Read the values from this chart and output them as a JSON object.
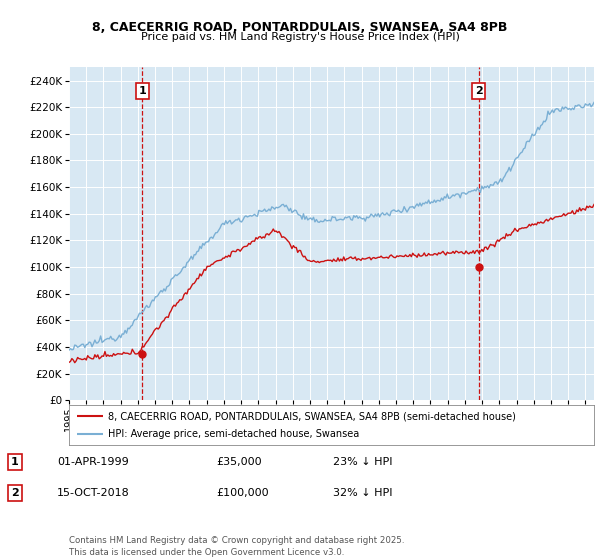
{
  "title1": "8, CAECERRIG ROAD, PONTARDDULAIS, SWANSEA, SA4 8PB",
  "title2": "Price paid vs. HM Land Registry's House Price Index (HPI)",
  "bg_color": "#d8e8f3",
  "hpi_color": "#7aafd4",
  "price_color": "#cc1111",
  "ann1_x": 1999.25,
  "ann1_price": 35000,
  "ann2_x": 2018.79,
  "ann2_price": 100000,
  "legend_line1": "8, CAECERRIG ROAD, PONTARDDULAIS, SWANSEA, SA4 8PB (semi-detached house)",
  "legend_line2": "HPI: Average price, semi-detached house, Swansea",
  "table_row1": [
    "1",
    "01-APR-1999",
    "£35,000",
    "23% ↓ HPI"
  ],
  "table_row2": [
    "2",
    "15-OCT-2018",
    "£100,000",
    "32% ↓ HPI"
  ],
  "footnote": "Contains HM Land Registry data © Crown copyright and database right 2025.\nThis data is licensed under the Open Government Licence v3.0.",
  "ylim": [
    0,
    250000
  ],
  "xlim_start": 1995.0,
  "xlim_end": 2025.5,
  "ytick_step": 20000,
  "ytick_max": 240001
}
